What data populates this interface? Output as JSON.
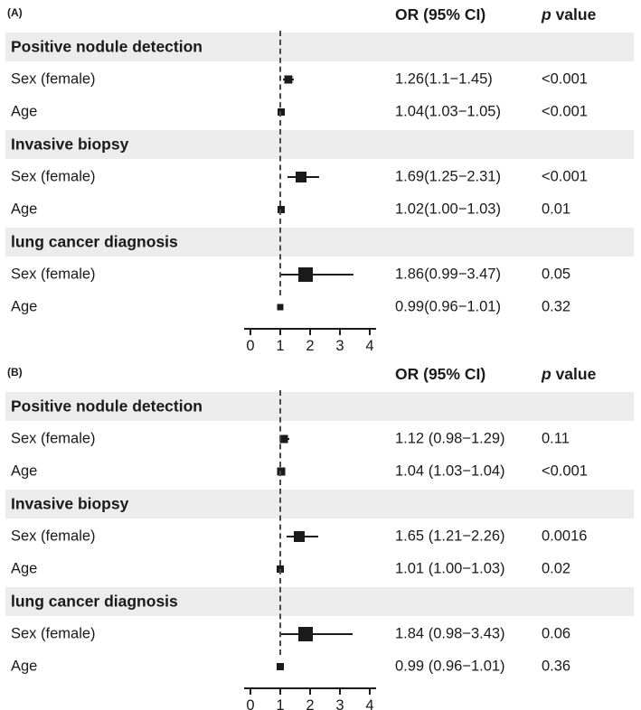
{
  "colors": {
    "marker": "#1a1a1a",
    "section_bg": "#ececec",
    "text": "#1a1a1a"
  },
  "chart_data": [
    {
      "type": "forest",
      "panel_label": "(A)",
      "or_header": "OR (95% CI)",
      "p_header_italic": "p",
      "p_header_rest": " value",
      "x_range": [
        0,
        4
      ],
      "x_ticks": [
        0,
        1,
        2,
        3,
        4
      ],
      "ref_line": 1,
      "groups": [
        {
          "header": "Positive nodule detection",
          "rows": [
            {
              "label": "Sex (female)",
              "or": 1.26,
              "low": 1.1,
              "high": 1.45,
              "or_text": "1.26(1.1−1.45)",
              "p": "<0.001",
              "marker_size": 9
            },
            {
              "label": "Age",
              "or": 1.04,
              "low": 1.03,
              "high": 1.05,
              "or_text": "1.04(1.03−1.05)",
              "p": "<0.001",
              "marker_size": 8
            }
          ]
        },
        {
          "header": "Invasive biopsy",
          "rows": [
            {
              "label": "Sex (female)",
              "or": 1.69,
              "low": 1.25,
              "high": 2.31,
              "or_text": "1.69(1.25−2.31)",
              "p": "<0.001",
              "marker_size": 12
            },
            {
              "label": "Age",
              "or": 1.02,
              "low": 1.0,
              "high": 1.03,
              "or_text": "1.02(1.00−1.03)",
              "p": "0.01",
              "marker_size": 8
            }
          ]
        },
        {
          "header": "lung cancer diagnosis",
          "rows": [
            {
              "label": "Sex (female)",
              "or": 1.86,
              "low": 0.99,
              "high": 3.47,
              "or_text": "1.86(0.99−3.47)",
              "p": "0.05",
              "marker_size": 16
            },
            {
              "label": "Age",
              "or": 0.99,
              "low": 0.96,
              "high": 1.01,
              "or_text": "0.99(0.96−1.01)",
              "p": "0.32",
              "marker_size": 7
            }
          ]
        }
      ]
    },
    {
      "type": "forest",
      "panel_label": "(B)",
      "or_header": "OR (95% CI)",
      "p_header_italic": "p",
      "p_header_rest": " value",
      "x_range": [
        0,
        4
      ],
      "x_ticks": [
        0,
        1,
        2,
        3,
        4
      ],
      "ref_line": 1,
      "groups": [
        {
          "header": "Positive nodule detection",
          "rows": [
            {
              "label": "Sex (female)",
              "or": 1.12,
              "low": 0.98,
              "high": 1.29,
              "or_text": "1.12 (0.98−1.29)",
              "p": "0.11",
              "marker_size": 9
            },
            {
              "label": "Age",
              "or": 1.04,
              "low": 1.03,
              "high": 1.04,
              "or_text": "1.04 (1.03−1.04)",
              "p": "<0.001",
              "marker_size": 9
            }
          ]
        },
        {
          "header": "Invasive biopsy",
          "rows": [
            {
              "label": "Sex (female)",
              "or": 1.65,
              "low": 1.21,
              "high": 2.26,
              "or_text": "1.65 (1.21−2.26)",
              "p": "0.0016",
              "marker_size": 12
            },
            {
              "label": "Age",
              "or": 1.01,
              "low": 1.0,
              "high": 1.03,
              "or_text": "1.01 (1.00−1.03)",
              "p": "0.02",
              "marker_size": 8
            }
          ]
        },
        {
          "header": "lung cancer diagnosis",
          "rows": [
            {
              "label": "Sex (female)",
              "or": 1.84,
              "low": 0.98,
              "high": 3.43,
              "or_text": "1.84 (0.98−3.43)",
              "p": "0.06",
              "marker_size": 16
            },
            {
              "label": "Age",
              "or": 0.99,
              "low": 0.96,
              "high": 1.01,
              "or_text": "0.99 (0.96−1.01)",
              "p": "0.36",
              "marker_size": 8
            }
          ]
        }
      ]
    }
  ]
}
